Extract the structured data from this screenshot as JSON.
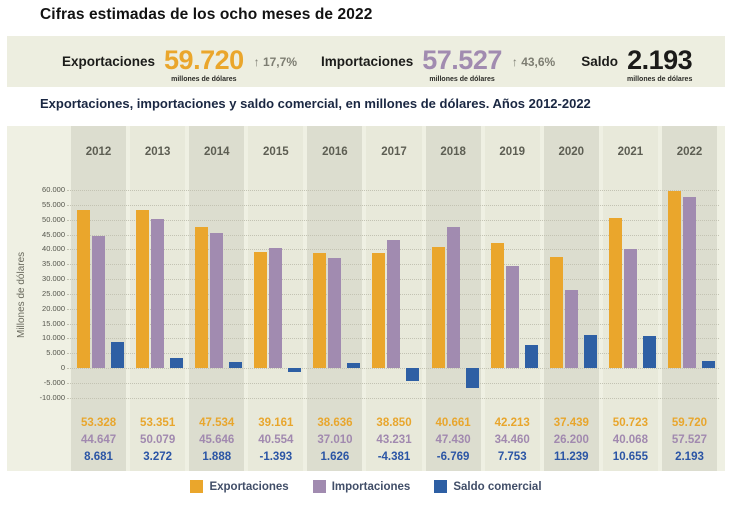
{
  "header": {
    "title": "Cifras estimadas de los ocho meses de 2022"
  },
  "summary": {
    "exports": {
      "label": "Exportaciones",
      "value": "59.720",
      "unit": "millones de dólares",
      "change": "↑ 17,7%",
      "color": "#EAA62C"
    },
    "imports": {
      "label": "Importaciones",
      "value": "57.527",
      "unit": "millones de dólares",
      "change": "↑ 43,6%",
      "color": "#A18BB0"
    },
    "balance": {
      "label": "Saldo",
      "value": "2.193",
      "unit": "millones de dólares",
      "color": "#1b1b19"
    }
  },
  "chart_title": "Exportaciones, importaciones y saldo comercial, en millones de dólares. Años 2012-2022",
  "chart_data": {
    "type": "bar",
    "title": "Exportaciones, importaciones y saldo comercial, en millones de dólares. Años 2012-2022",
    "xlabel": "",
    "ylabel": "Millones de dólares",
    "ylim": [
      -10000,
      60000
    ],
    "ytick_step": 5000,
    "grid": true,
    "legend_position": "bottom",
    "thousands_separator": ".",
    "categories": [
      "2012",
      "2013",
      "2014",
      "2015",
      "2016",
      "2017",
      "2018",
      "2019",
      "2020",
      "2021",
      "2022"
    ],
    "series": [
      {
        "name": "Exportaciones",
        "color": "#EAA62C",
        "text_color": "#E8A62D",
        "values": [
          53328,
          53351,
          47534,
          39161,
          38636,
          38850,
          40661,
          42213,
          37439,
          50723,
          59720
        ]
      },
      {
        "name": "Importaciones",
        "color": "#A18BB0",
        "text_color": "#A189AF",
        "values": [
          44647,
          50079,
          45646,
          40554,
          37010,
          43231,
          47430,
          34460,
          26200,
          40068,
          57527
        ]
      },
      {
        "name": "Saldo comercial",
        "color": "#2E5FA4",
        "text_color": "#2B55A5",
        "values": [
          8681,
          3272,
          1888,
          -1393,
          1626,
          -4381,
          -6769,
          7753,
          11239,
          10655,
          2193
        ]
      }
    ],
    "value_table_shown": true,
    "legend_text_color": "#414e68"
  }
}
